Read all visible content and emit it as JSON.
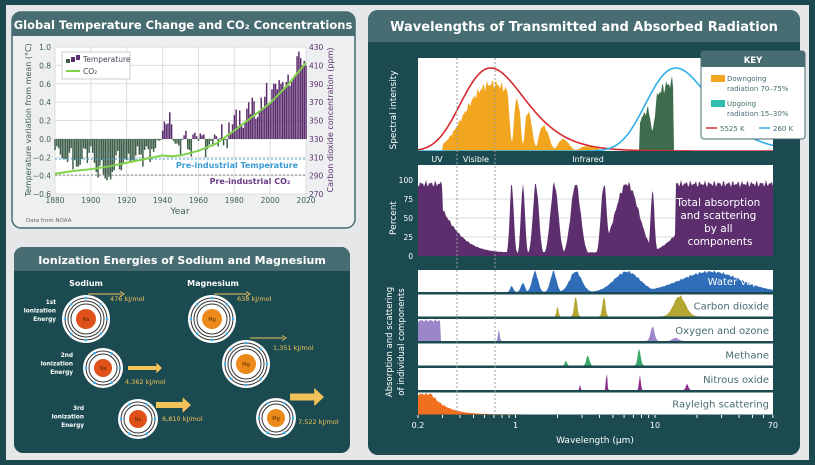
{
  "colors": {
    "frame": "#1c4850",
    "page": "#e6e7e8",
    "header": "#476c72",
    "panel_dark": "#1b4a51",
    "neg_bar": "#3f5f4b",
    "pos_bar": "#5c2e6e",
    "co2": "#7fd24a",
    "pre_temp": "#3aa0d8",
    "pre_co2": "#6a3a85",
    "solar": "#f2a51f",
    "earth": "#3d6b4c",
    "red": "#d62a2f",
    "blue": "#2fb0e8",
    "absorb": "#5c2e6e",
    "water": "#2f6db8",
    "co2_band": "#b5a632",
    "oxygen": "#9a86c8",
    "methane": "#3aa768",
    "nitrous": "#8a2a8a",
    "rayleigh": "#f07020",
    "energy": "#f2c25a",
    "electron": "#3ab0ee"
  },
  "temp_panel": {
    "title": "Global Temperature Change and CO₂ Concentrations",
    "source": "Data from NOAA",
    "pre_temp_label": "Pre-industrial Temperature",
    "pre_co2_label": "Pre-industrial CO₂"
  },
  "chart_data": {
    "type": "bar+line",
    "title": "Global Temperature Change and CO₂ Concentrations",
    "xlabel": "Year",
    "ylabel": "Temperature variation from mean (°C)",
    "y2label": "Carbon dioxide concentration (ppm)",
    "xlim": [
      1880,
      2020
    ],
    "ylim": [
      -0.6,
      1.0
    ],
    "y2lim": [
      270,
      430
    ],
    "xticks": [
      "1880",
      "1900",
      "1920",
      "1940",
      "1960",
      "1980",
      "2000",
      "2020"
    ],
    "yticks": [
      "1.0",
      "0.8",
      "0.6",
      "0.4",
      "0.2",
      "0.0",
      "−0.2",
      "−0.4",
      "−0.6"
    ],
    "y2ticks": [
      "430",
      "410",
      "390",
      "370",
      "350",
      "330",
      "310",
      "290",
      "270"
    ],
    "grid": true,
    "legend": "top-left",
    "series": [
      {
        "name": "Temperature",
        "type": "bar",
        "start_year": 1880,
        "values": [
          -0.12,
          -0.08,
          -0.1,
          -0.17,
          -0.21,
          -0.22,
          -0.22,
          -0.25,
          -0.15,
          -0.1,
          -0.33,
          -0.23,
          -0.3,
          -0.3,
          -0.28,
          -0.22,
          -0.1,
          -0.11,
          -0.26,
          -0.15,
          -0.08,
          -0.15,
          -0.26,
          -0.36,
          -0.42,
          -0.29,
          -0.23,
          -0.39,
          -0.43,
          -0.45,
          -0.41,
          -0.44,
          -0.36,
          -0.34,
          -0.18,
          -0.13,
          -0.33,
          -0.34,
          -0.27,
          -0.22,
          -0.23,
          -0.16,
          -0.24,
          -0.23,
          -0.24,
          -0.18,
          -0.08,
          -0.17,
          -0.17,
          -0.3,
          -0.12,
          -0.08,
          -0.11,
          -0.25,
          -0.11,
          -0.14,
          -0.1,
          -0.01,
          -0.02,
          -0.01,
          0.09,
          0.19,
          0.16,
          0.17,
          0.29,
          0.16,
          -0.02,
          -0.05,
          -0.05,
          -0.07,
          -0.17,
          -0.01,
          0.04,
          0.09,
          -0.11,
          -0.12,
          -0.19,
          0.05,
          0.07,
          0.03,
          -0.02,
          0.06,
          0.04,
          0.05,
          -0.2,
          -0.11,
          -0.06,
          -0.02,
          -0.08,
          0.05,
          0.03,
          -0.08,
          0.01,
          0.16,
          -0.07,
          -0.01,
          -0.1,
          0.18,
          0.07,
          0.16,
          0.26,
          0.32,
          0.14,
          0.31,
          0.16,
          0.12,
          0.18,
          0.33,
          0.4,
          0.27,
          0.45,
          0.41,
          0.22,
          0.24,
          0.31,
          0.45,
          0.33,
          0.46,
          0.61,
          0.38,
          0.39,
          0.54,
          0.6,
          0.6,
          0.54,
          0.64,
          0.6,
          0.62,
          0.54,
          0.62,
          0.7,
          0.58,
          0.62,
          0.66,
          0.7,
          0.9,
          0.95,
          0.88,
          0.8,
          0.85,
          0.8
        ]
      },
      {
        "name": "CO₂",
        "type": "line",
        "axis": "right",
        "x": [
          1880,
          1890,
          1900,
          1910,
          1920,
          1930,
          1940,
          1945,
          1950,
          1960,
          1970,
          1980,
          1990,
          2000,
          2010,
          2020
        ],
        "values": [
          292,
          295,
          297,
          300,
          304,
          308,
          312,
          311,
          312,
          317,
          325,
          339,
          354,
          369,
          389,
          413
        ]
      }
    ],
    "reference_lines": [
      {
        "label": "Pre-industrial Temperature",
        "y": -0.22
      },
      {
        "label": "Pre-industrial CO₂",
        "y2": 290
      }
    ]
  },
  "ion_panel": {
    "title": "Ionization Energies of Sodium and Magnesium",
    "sodium_label": "Sodium",
    "magnesium_label": "Magnesium",
    "rows": [
      {
        "label": [
          "1st",
          "Ionization",
          "Energy"
        ],
        "na": "476 kJ/mol",
        "mg": "638 kJ/mol"
      },
      {
        "label": [
          "2nd",
          "Ionization",
          "Energy"
        ],
        "na": "4,362 kJ/mol",
        "mg": "1,351 kJ/mol"
      },
      {
        "label": [
          "3rd",
          "Ionization",
          "Energy"
        ],
        "na": "6,810 kJ/mol",
        "mg": "7,522 kJ/mol"
      }
    ],
    "na_symbol": "Na",
    "mg_symbol": "Mg"
  },
  "rad_panel": {
    "title": "Wavelengths of Transmitted and Absorbed Radiation",
    "spectral_label": "Spectral intensity",
    "percent_label": "Percent",
    "percent_ticks": [
      "100",
      "75",
      "50",
      "25",
      "0"
    ],
    "components_label": [
      "Absorption and scattering",
      "of individual components"
    ],
    "bands": {
      "uv": "UV",
      "visible": "Visible",
      "infrared": "Infrared"
    },
    "total_label": [
      "Total absorption",
      "and scattering",
      "by all",
      "components"
    ],
    "components": [
      "Water vapor",
      "Carbon dioxide",
      "Oxygen and ozone",
      "Methane",
      "Nitrous oxide",
      "Rayleigh scattering"
    ],
    "x_ticks": [
      "0.2",
      "1",
      "10",
      "70"
    ],
    "x_label": "Wavelength (µm)",
    "key": {
      "title": "KEY",
      "down": [
        "Downgoing",
        "radiation 70–75%"
      ],
      "up": [
        "Upgoing",
        "radiation 15–30%"
      ],
      "t1": "5525 K",
      "t2": "260 K"
    }
  }
}
